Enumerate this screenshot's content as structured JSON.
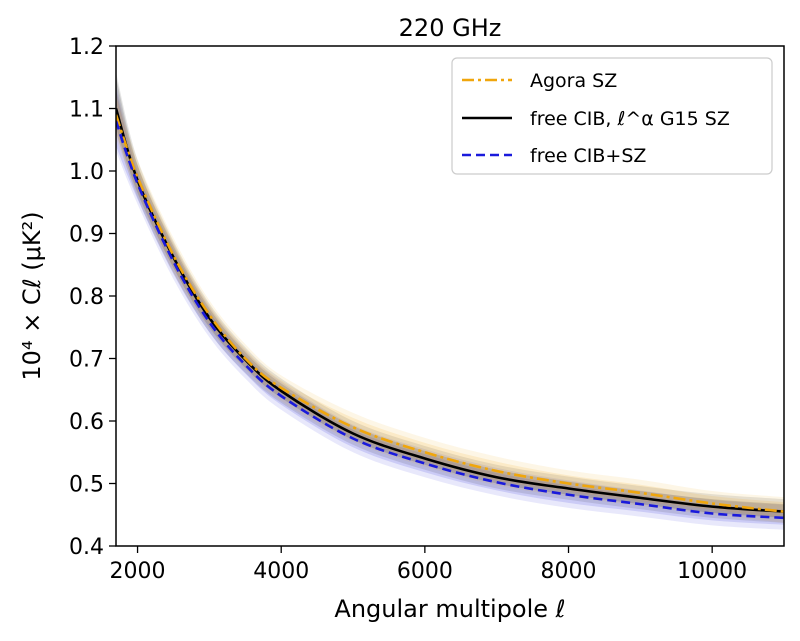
{
  "chart_data": {
    "type": "line",
    "title": "220 GHz",
    "xlabel": "Angular multipole ℓ",
    "ylabel": "10⁴ × Cℓ (μK²)",
    "xlim": [
      1700,
      11000
    ],
    "ylim": [
      0.4,
      1.2
    ],
    "xticks": [
      2000,
      4000,
      6000,
      8000,
      10000
    ],
    "yticks": [
      0.4,
      0.5,
      0.6,
      0.7,
      0.8,
      0.9,
      1.0,
      1.1,
      1.2
    ],
    "grid": false,
    "legend_position": "top-right",
    "x": [
      1700,
      2000,
      2500,
      3000,
      3500,
      4000,
      5000,
      6000,
      7000,
      8000,
      9000,
      10000,
      11000
    ],
    "series": [
      {
        "name": "Agora SZ",
        "color": "#f0a60c",
        "style": "dash-dot",
        "values": [
          1.09,
          0.99,
          0.865,
          0.77,
          0.7,
          0.653,
          0.59,
          0.55,
          0.52,
          0.5,
          0.485,
          0.468,
          0.455
        ],
        "band_low": [
          1.06,
          0.97,
          0.845,
          0.755,
          0.69,
          0.64,
          0.575,
          0.535,
          0.505,
          0.487,
          0.472,
          0.458,
          0.445
        ],
        "band_high": [
          1.12,
          1.01,
          0.885,
          0.785,
          0.715,
          0.665,
          0.605,
          0.565,
          0.535,
          0.513,
          0.498,
          0.48,
          0.47
        ]
      },
      {
        "name": "free CIB, ℓ^α G15 SZ",
        "color": "#000000",
        "style": "solid",
        "values": [
          1.1,
          0.985,
          0.862,
          0.765,
          0.698,
          0.648,
          0.58,
          0.54,
          0.51,
          0.492,
          0.477,
          0.463,
          0.455
        ],
        "band_low": [
          1.07,
          0.965,
          0.845,
          0.75,
          0.685,
          0.637,
          0.57,
          0.53,
          0.5,
          0.482,
          0.467,
          0.453,
          0.445
        ],
        "band_high": [
          1.15,
          1.01,
          0.88,
          0.78,
          0.71,
          0.66,
          0.592,
          0.552,
          0.522,
          0.503,
          0.488,
          0.475,
          0.467
        ]
      },
      {
        "name": "free CIB+SZ",
        "color": "#1a1adc",
        "style": "dashed",
        "values": [
          1.08,
          0.98,
          0.855,
          0.758,
          0.69,
          0.64,
          0.572,
          0.532,
          0.502,
          0.482,
          0.467,
          0.452,
          0.445
        ],
        "band_low": [
          1.04,
          0.955,
          0.835,
          0.742,
          0.676,
          0.626,
          0.558,
          0.518,
          0.489,
          0.469,
          0.455,
          0.441,
          0.434
        ],
        "band_high": [
          1.13,
          1.0,
          0.875,
          0.775,
          0.705,
          0.655,
          0.586,
          0.547,
          0.517,
          0.497,
          0.481,
          0.466,
          0.458
        ]
      }
    ]
  }
}
